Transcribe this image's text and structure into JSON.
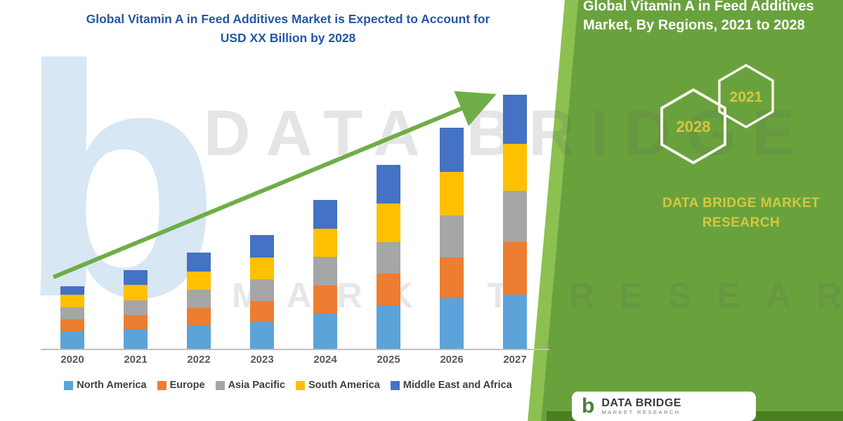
{
  "header": {
    "title_line1": "Global Vitamin A in Feed Additives Market is Expected to Account for",
    "title_line2": "USD XX Billion by 2028",
    "title_color": "#2457a7"
  },
  "watermarks": {
    "logo_letter": "b",
    "line1": "DATA BRIDGE",
    "line2": "MARKET RESEARCH"
  },
  "chart_data": {
    "type": "bar",
    "stacked": true,
    "title": "Global Vitamin A in Feed Additives Market is Expected to Account for USD XX Billion by 2028",
    "categories": [
      "2020",
      "2021",
      "2022",
      "2023",
      "2024",
      "2025",
      "2026",
      "2027"
    ],
    "series": [
      {
        "name": "North America",
        "color": "#5BA3D9",
        "values": [
          25,
          28,
          33,
          38,
          50,
          62,
          72,
          77
        ]
      },
      {
        "name": "Europe",
        "color": "#ED7D31",
        "values": [
          17,
          20,
          25,
          30,
          40,
          45,
          58,
          75
        ]
      },
      {
        "name": "Asia Pacific",
        "color": "#A6A6A6",
        "values": [
          17,
          21,
          26,
          31,
          41,
          45,
          60,
          73
        ]
      },
      {
        "name": "South America",
        "color": "#FFC000",
        "values": [
          18,
          22,
          26,
          31,
          40,
          55,
          62,
          67
        ]
      },
      {
        "name": "Middle East and Africa",
        "color": "#4472C4",
        "values": [
          12,
          21,
          27,
          32,
          41,
          55,
          63,
          70
        ]
      }
    ],
    "totals": [
      89,
      112,
      137,
      162,
      212,
      262,
      315,
      362
    ],
    "xlabel": "",
    "ylabel": "",
    "y_axis_shown": false,
    "ylim": [
      0,
      400
    ],
    "unit": "arbitrary units (chart labeled as USD XX Billion)",
    "grid": false,
    "legend_position": "bottom",
    "trend_arrow": {
      "direction": "up-right",
      "color": "#6FAE46"
    }
  },
  "right_panel": {
    "title": "Global Vitamin A in Feed Additives Market, By Regions, 2021 to 2028",
    "hexagons": [
      {
        "label": "2028"
      },
      {
        "label": "2021"
      }
    ],
    "brand": "DATA BRIDGE MARKET RESEARCH",
    "panel_color": "#69a23d",
    "accent_color": "#8cc051",
    "brand_color": "#d6c73e"
  },
  "footer": {
    "logo_letter": "b",
    "brand": "DATA BRIDGE",
    "sub": "MARKET RESEARCH"
  }
}
